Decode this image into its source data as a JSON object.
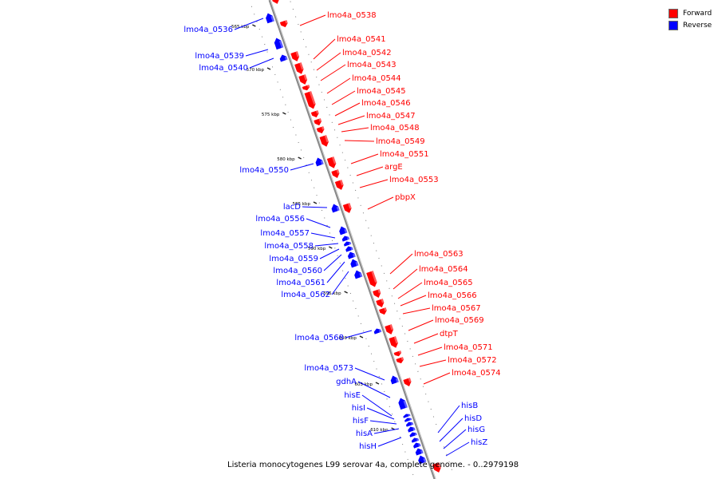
{
  "legend": {
    "forward_label": "Forward",
    "reverse_label": "Reverse",
    "forward_color": "#ff0000",
    "reverse_color": "#0000ff"
  },
  "caption": "Listeria monocytogenes L99 serovar 4a, complete genome. - 0..2979198",
  "colors": {
    "forward": "#ff0000",
    "reverse": "#0000ff",
    "backbone": "#888888"
  },
  "ticks": [
    "565 kbp",
    "570 kbp",
    "575 kbp",
    "580 kbp",
    "585 kbp",
    "590 kbp",
    "595 kbp",
    "600 kbp",
    "605 kbp",
    "610 kbp"
  ],
  "genes": {
    "forward": [
      "lmo4a_0538",
      "lmo4a_0541",
      "lmo4a_0542",
      "lmo4a_0543",
      "lmo4a_0544",
      "lmo4a_0545",
      "lmo4a_0546",
      "lmo4a_0547",
      "lmo4a_0548",
      "lmo4a_0549",
      "lmo4a_0551",
      "argE",
      "lmo4a_0553",
      "pbpX",
      "lmo4a_0563",
      "lmo4a_0564",
      "lmo4a_0565",
      "lmo4a_0566",
      "lmo4a_0567",
      "lmo4a_0569",
      "dtpT",
      "lmo4a_0571",
      "lmo4a_0572",
      "lmo4a_0574"
    ],
    "reverse": [
      "lmo4a_0536",
      "lmo4a_0539",
      "lmo4a_0540",
      "lmo4a_0550",
      "lacD",
      "lmo4a_0556",
      "lmo4a_0557",
      "lmo4a_0558",
      "lmo4a_0559",
      "lmo4a_0560",
      "lmo4a_0561",
      "lmo4a_0562",
      "lmo4a_0568",
      "lmo4a_0573",
      "gdhA",
      "hisE",
      "hisI",
      "hisF",
      "hisA",
      "hisH",
      "hisB",
      "hisD",
      "hisG",
      "hisZ"
    ]
  }
}
